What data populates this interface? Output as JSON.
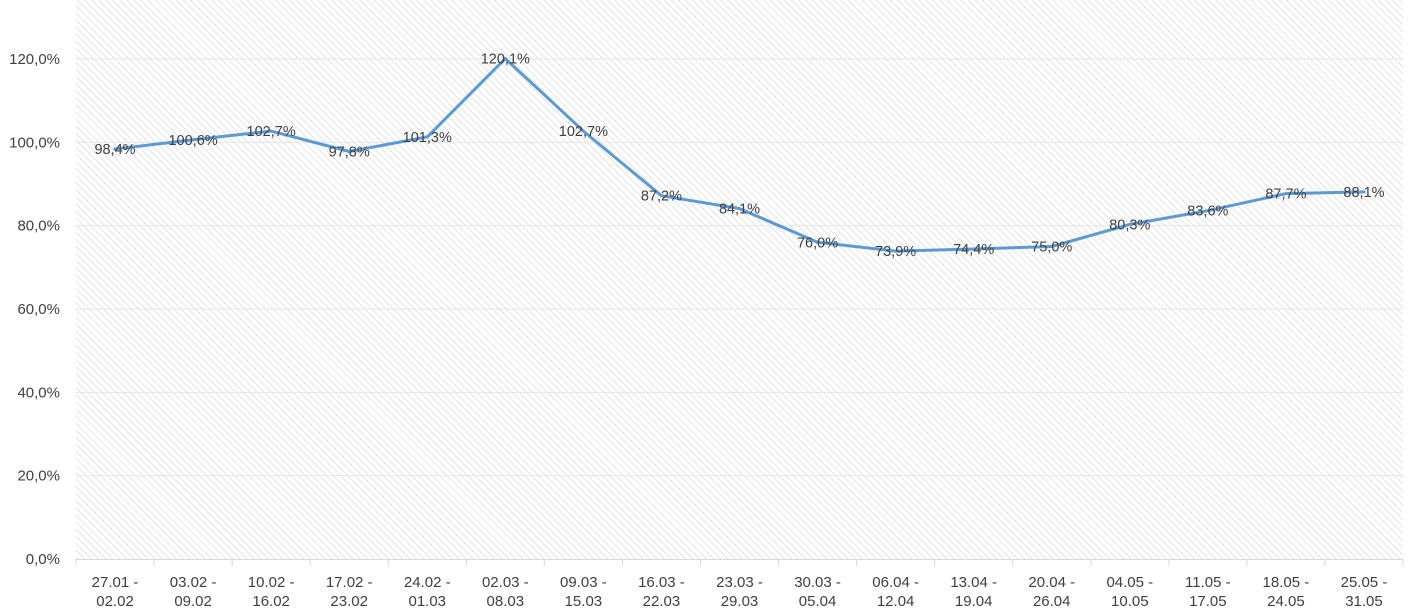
{
  "chart_data": {
    "type": "line",
    "title": "",
    "xlabel": "",
    "ylabel": "",
    "categories": [
      [
        "27.01 -",
        "02.02"
      ],
      [
        "03.02 -",
        "09.02"
      ],
      [
        "10.02 -",
        "16.02"
      ],
      [
        "17.02 -",
        "23.02"
      ],
      [
        "24.02 -",
        "01.03"
      ],
      [
        "02.03 -",
        "08.03"
      ],
      [
        "09.03 -",
        "15.03"
      ],
      [
        "16.03 -",
        "22.03"
      ],
      [
        "23.03 -",
        "29.03"
      ],
      [
        "30.03 -",
        "05.04"
      ],
      [
        "06.04 -",
        "12.04"
      ],
      [
        "13.04 -",
        "19.04"
      ],
      [
        "20.04 -",
        "26.04"
      ],
      [
        "04.05 -",
        "10.05"
      ],
      [
        "11.05 -",
        "17.05"
      ],
      [
        "18.05 -",
        "24.05"
      ],
      [
        "25.05 -",
        "31.05"
      ]
    ],
    "series": [
      {
        "values": [
          98.4,
          100.6,
          102.7,
          97.8,
          101.3,
          120.1,
          102.7,
          87.2,
          84.1,
          76.0,
          73.9,
          74.4,
          75.0,
          80.3,
          83.6,
          87.7,
          88.1
        ],
        "labels": [
          "98,4%",
          "100,6%",
          "102,7%",
          "97,8%",
          "101,3%",
          "120,1%",
          "102,7%",
          "87,2%",
          "84,1%",
          "76,0%",
          "73,9%",
          "74,4%",
          "75,0%",
          "80,3%",
          "83,6%",
          "87,7%",
          "88,1%"
        ],
        "color": "#5b9bd5"
      }
    ],
    "yticks": [
      {
        "value": 0,
        "label": "0,0%"
      },
      {
        "value": 20,
        "label": "20,0%"
      },
      {
        "value": 40,
        "label": "40,0%"
      },
      {
        "value": 60,
        "label": "60,0%"
      },
      {
        "value": 80,
        "label": "80,0%"
      },
      {
        "value": 100,
        "label": "100,0%"
      },
      {
        "value": 120,
        "label": "120,0%"
      }
    ],
    "ylim": [
      0,
      140
    ],
    "grid": true,
    "legend": "none",
    "colors": {
      "line": "#5b9bd5",
      "gridline": "#e6e6e6",
      "axis": "#d9d9d9",
      "hatch": "#d9d9d9",
      "text": "#404040"
    }
  }
}
